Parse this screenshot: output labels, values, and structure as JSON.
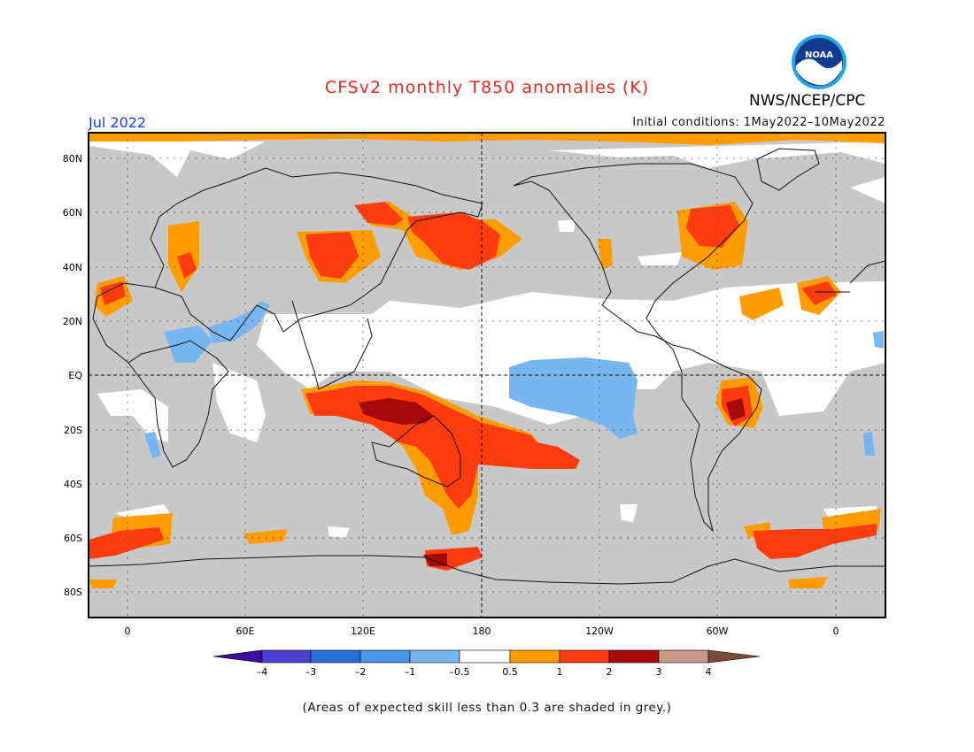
{
  "title": "CFSv2 monthly T850 anomalies (K)",
  "agency": "NWS/NCEP/CPC",
  "logo_text": "NOAA",
  "valid_month": "Jul 2022",
  "initial_conditions": {
    "label": "Initial conditions:",
    "value": "1May2022–10May2022"
  },
  "footnote": "(Areas of expected skill less than 0.3 are shaded in grey.)",
  "map": {
    "lat_labels": [
      "80N",
      "60N",
      "40N",
      "20N",
      "EQ",
      "20S",
      "40S",
      "60S",
      "80S"
    ],
    "lon_labels": [
      "0",
      "60E",
      "120E",
      "180",
      "120W",
      "60W",
      "0"
    ],
    "low_skill_color": "#c8c8c8"
  },
  "colorbar": {
    "tick_labels": [
      "–4",
      "–3",
      "–2",
      "–1",
      "–0.5",
      "0.5",
      "1",
      "2",
      "3",
      "4"
    ],
    "colors": [
      "#3a0da0",
      "#4b3fd0",
      "#2a6fd4",
      "#4b95ea",
      "#78b6f2",
      "#ffffff",
      "#ff9d00",
      "#ff3c0e",
      "#a50a0a",
      "#c8998a",
      "#7a4a3a"
    ]
  }
}
